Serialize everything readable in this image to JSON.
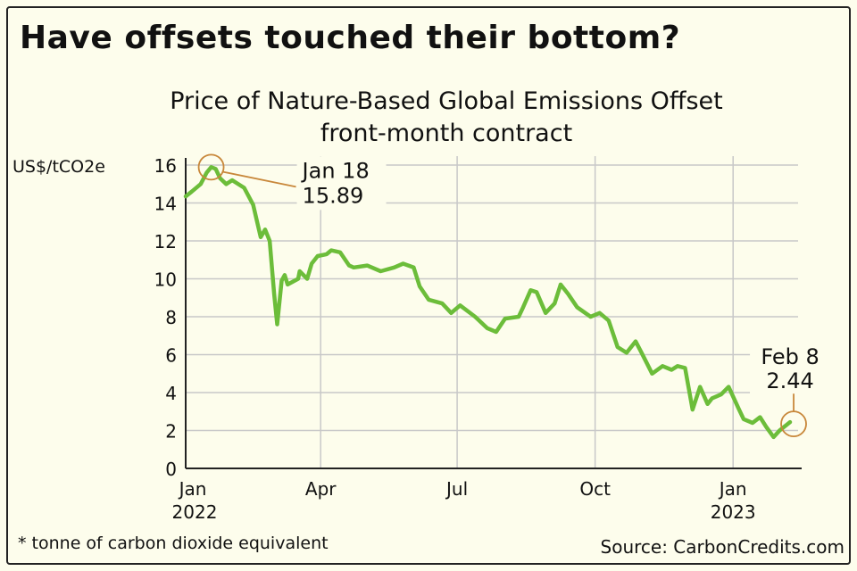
{
  "headline": "Have offsets touched their bottom?",
  "footnote": "* tonne of carbon dioxide equivalent",
  "source": "Source: CarbonCredits.com",
  "colors": {
    "line": "#6cbd3a",
    "annotation": "#c8873a",
    "grid": "#c8c8c8",
    "background": "#fdfdec"
  },
  "chart_data": {
    "type": "line",
    "title": "Price of Nature-Based Global Emissions Offset",
    "subtitle": "front-month contract",
    "ylabel": "US$/tCO2e",
    "ylim": [
      0,
      16
    ],
    "yticks": [
      0,
      2,
      4,
      6,
      8,
      10,
      12,
      14,
      16
    ],
    "xlim": [
      "2022-01-01",
      "2023-02-15"
    ],
    "xticks": [
      {
        "date": "2022-01-01",
        "label": "Jan",
        "sub": "2022"
      },
      {
        "date": "2022-04-01",
        "label": "Apr",
        "sub": ""
      },
      {
        "date": "2022-07-01",
        "label": "Jul",
        "sub": ""
      },
      {
        "date": "2022-10-01",
        "label": "Oct",
        "sub": ""
      },
      {
        "date": "2023-01-01",
        "label": "Jan",
        "sub": "2023"
      }
    ],
    "grid": true,
    "series": [
      {
        "x": [
          "2022-01-01",
          "2022-01-05",
          "2022-01-11",
          "2022-01-15",
          "2022-01-18",
          "2022-01-21",
          "2022-01-24",
          "2022-01-28",
          "2022-02-01",
          "2022-02-09",
          "2022-02-15",
          "2022-02-20",
          "2022-02-23",
          "2022-02-26",
          "2022-03-01",
          "2022-03-03",
          "2022-03-06",
          "2022-03-08",
          "2022-03-10",
          "2022-03-17",
          "2022-03-18",
          "2022-03-23",
          "2022-03-26",
          "2022-03-30",
          "2022-04-05",
          "2022-04-08",
          "2022-04-14",
          "2022-04-20",
          "2022-04-23",
          "2022-05-02",
          "2022-05-11",
          "2022-05-20",
          "2022-05-26",
          "2022-06-02",
          "2022-06-06",
          "2022-06-12",
          "2022-06-21",
          "2022-06-27",
          "2022-07-03",
          "2022-07-13",
          "2022-07-21",
          "2022-07-27",
          "2022-08-02",
          "2022-08-11",
          "2022-08-14",
          "2022-08-19",
          "2022-08-23",
          "2022-08-29",
          "2022-09-04",
          "2022-09-08",
          "2022-09-13",
          "2022-09-19",
          "2022-09-28",
          "2022-10-04",
          "2022-10-10",
          "2022-10-16",
          "2022-10-22",
          "2022-10-28",
          "2022-11-01",
          "2022-11-08",
          "2022-11-15",
          "2022-11-21",
          "2022-11-25",
          "2022-11-30",
          "2022-12-05",
          "2022-12-10",
          "2022-12-15",
          "2022-12-18",
          "2022-12-24",
          "2022-12-29",
          "2023-01-05",
          "2023-01-08",
          "2023-01-14",
          "2023-01-19",
          "2023-01-23",
          "2023-01-28",
          "2023-02-01",
          "2023-02-08"
        ],
        "y": [
          14.35,
          14.6,
          15.0,
          15.6,
          15.89,
          15.8,
          15.3,
          15.0,
          15.2,
          14.8,
          13.9,
          12.2,
          12.6,
          12.0,
          9.2,
          7.6,
          9.9,
          10.2,
          9.7,
          10.0,
          10.4,
          10.0,
          10.8,
          11.2,
          11.3,
          11.5,
          11.4,
          10.7,
          10.6,
          10.7,
          10.4,
          10.6,
          10.8,
          10.6,
          9.6,
          8.9,
          8.7,
          8.2,
          8.6,
          8.0,
          7.4,
          7.2,
          7.9,
          8.0,
          8.5,
          9.4,
          9.3,
          8.2,
          8.7,
          9.7,
          9.2,
          8.5,
          8.0,
          8.2,
          7.8,
          6.4,
          6.1,
          6.7,
          6.1,
          5.0,
          5.4,
          5.2,
          5.4,
          5.3,
          3.1,
          4.3,
          3.4,
          3.7,
          3.9,
          4.3,
          3.1,
          2.6,
          2.4,
          2.7,
          2.2,
          1.65,
          2.0,
          2.44
        ]
      }
    ],
    "annotations": [
      {
        "date": "2022-01-18",
        "value": 15.89,
        "label": "Jan 18",
        "value_label": "15.89"
      },
      {
        "date": "2023-02-08",
        "value": 2.44,
        "label": "Feb 8",
        "value_label": "2.44"
      }
    ]
  }
}
